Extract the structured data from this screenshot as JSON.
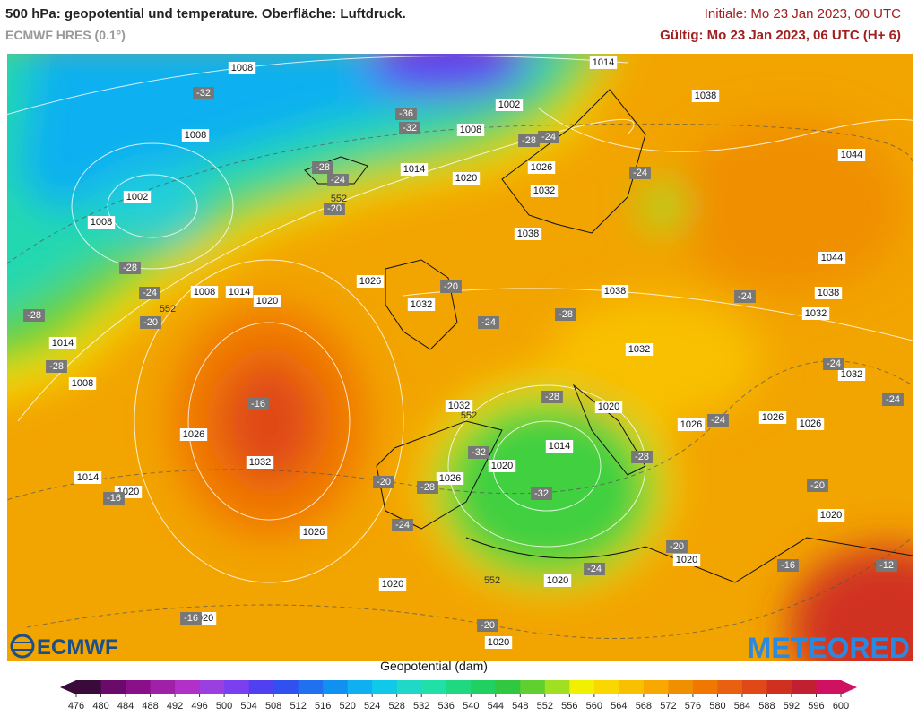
{
  "header": {
    "title": "500 hPa: geopotential und temperature. Oberfläche: Luftdruck.",
    "model": "ECMWF HRES (0.1°)",
    "init": "Initiale: Mo 23 Jan 2023, 00 UTC",
    "valid": "Gültig: Mo 23 Jan 2023, 06 UTC (H+ 6)"
  },
  "map": {
    "isobar_labels": [
      1008,
      1008,
      1002,
      1008,
      1014,
      1002,
      1008,
      1014,
      1020,
      1026,
      1032,
      1038,
      1038,
      1044,
      1044,
      1038,
      1032,
      1038,
      1032,
      1032,
      1026,
      1032,
      1008,
      1014,
      1020,
      1014,
      1008,
      1032,
      1020,
      1026,
      1026,
      1026,
      1014,
      1020,
      1026,
      1026,
      1032,
      1014,
      1020,
      1026,
      1020,
      1020,
      1020,
      1020,
      1020,
      1020
    ],
    "temperature_labels": [
      -32,
      -36,
      -32,
      -28,
      -24,
      -28,
      -24,
      -20,
      -24,
      -28,
      -24,
      -20,
      -28,
      -28,
      -20,
      -24,
      -28,
      -24,
      -24,
      -24,
      -16,
      -28,
      -24,
      -32,
      -28,
      -20,
      -28,
      -32,
      -16,
      -20,
      -24,
      -20,
      -16,
      -12,
      -24,
      -16,
      -20
    ],
    "contour_labels": [
      552,
      552,
      552,
      552
    ]
  },
  "colorbar": {
    "label": "Geopotential (dam)",
    "ticks": [
      476,
      480,
      484,
      488,
      492,
      496,
      500,
      504,
      508,
      512,
      516,
      520,
      524,
      528,
      532,
      536,
      540,
      544,
      548,
      552,
      556,
      560,
      564,
      568,
      572,
      576,
      580,
      584,
      588,
      592,
      596,
      600
    ],
    "colors": [
      "#3a0a3a",
      "#6a0a6a",
      "#8a108a",
      "#a020a8",
      "#b030c8",
      "#9a40e0",
      "#7a40f0",
      "#5040f0",
      "#3050f0",
      "#2070f0",
      "#1090f0",
      "#10b0f0",
      "#10c8e8",
      "#20d8c8",
      "#20e0a8",
      "#20d880",
      "#20d060",
      "#30c840",
      "#60d030",
      "#a0e020",
      "#f0f000",
      "#f8d800",
      "#f8c000",
      "#f8a800",
      "#f09000",
      "#f07800",
      "#e86010",
      "#e04818",
      "#d03020",
      "#c02030",
      "#d01060"
    ]
  },
  "logos": {
    "left": "ECMWF",
    "right": "METEORED"
  }
}
